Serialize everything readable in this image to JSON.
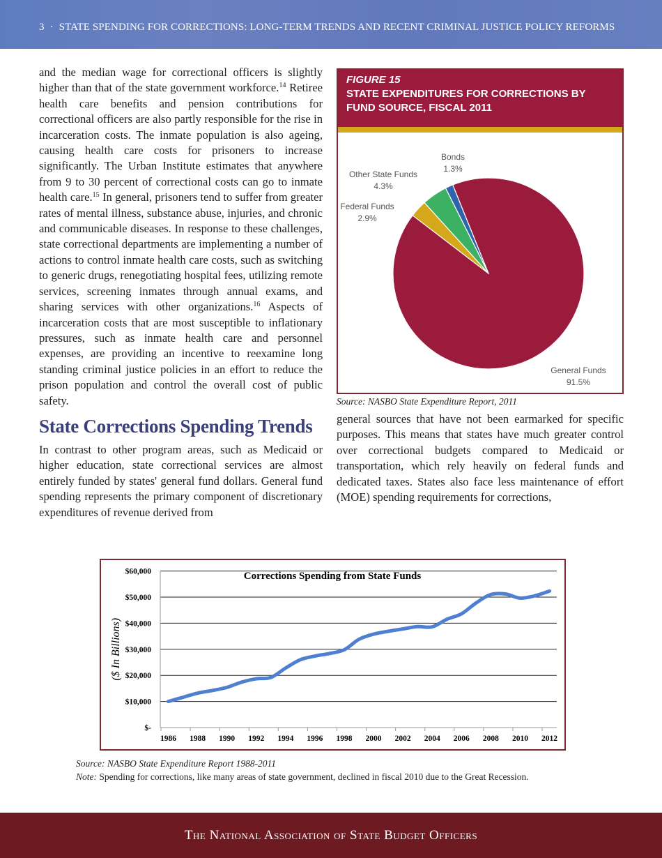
{
  "header": {
    "page_number": "3",
    "separator": "·",
    "title": "STATE SPENDING FOR CORRECTIONS: LONG-TERM TRENDS AND RECENT CRIMINAL JUSTICE POLICY REFORMS"
  },
  "body": {
    "para1_parts": [
      "and the median wage for correctional officers is slightly higher than that of the state government workforce.",
      "14",
      " Retiree health care benefits and pension contributions for correctional officers are also partly responsible for the rise in incarceration costs. The inmate population is also ageing, causing health care costs for prisoners to increase significantly. The Urban Institute estimates that anywhere from 9 to 30 percent of correctional costs can go to inmate health care.",
      "15",
      "  In general, prisoners tend to suffer from greater rates of mental illness, substance abuse, injuries, and  chronic and communicable diseases. In response to these challenges, state correctional departments are implementing a number of actions to control inmate health care costs, such as switching to generic drugs, renegotiating hospital fees, utilizing remote services, screening inmates through annual exams, and sharing services with other organizations.",
      "16",
      " Aspects of incarceration costs that are most susceptible to inflationary pressures, such as inmate health care and personnel expenses, are providing an incentive to reexamine long standing criminal justice policies in an effort to reduce the prison population and control the overall cost of public safety."
    ],
    "heading": "State Corrections Spending Trends",
    "para2": "In contrast to other program areas, such as Medicaid or higher education, state correctional services are almost entirely funded by states' general fund dollars. General fund spending represents the primary component of discretionary expenditures of revenue derived from",
    "para3": "general sources that have not been earmarked for specific purposes. This means that states have much greater control over correctional budgets compared to Medicaid or transportation, which rely heavily on federal funds and dedicated taxes. States also face less maintenance of effort (MOE) spending requirements for corrections,"
  },
  "figure15": {
    "number": "FIGURE 15",
    "title": "STATE EXPENDITURES FOR CORRECTIONS BY FUND SOURCE, FISCAL 2011",
    "source": "Source: NASBO State Expenditure Report, 2011",
    "colors": {
      "band": "#9b1b3d",
      "accent": "#d4a81a"
    }
  },
  "chart_data": [
    {
      "type": "pie",
      "title": "STATE EXPENDITURES FOR CORRECTIONS BY FUND SOURCE, FISCAL 2011",
      "slices": [
        {
          "label": "General Funds",
          "value": 91.5,
          "display": "91.5%",
          "color": "#9b1b3d"
        },
        {
          "label": "Federal Funds",
          "value": 2.9,
          "display": "2.9%",
          "color": "#d4a81a"
        },
        {
          "label": "Other State Funds",
          "value": 4.3,
          "display": "4.3%",
          "color": "#3cb063"
        },
        {
          "label": "Bonds",
          "value": 1.3,
          "display": "1.3%",
          "color": "#2f64ad"
        }
      ]
    },
    {
      "type": "line",
      "title": "Corrections Spending from State Funds",
      "xlabel": "",
      "ylabel": "($ In Billions)",
      "ylim": [
        0,
        60000
      ],
      "grid": true,
      "yticks": [
        "$-",
        "$10,000",
        "$20,000",
        "$30,000",
        "$40,000",
        "$50,000",
        "$60,000"
      ],
      "xticks": [
        "1986",
        "1988",
        "1990",
        "1992",
        "1994",
        "1996",
        "1998",
        "2000",
        "2002",
        "2004",
        "2006",
        "2008",
        "2010",
        "2012"
      ],
      "color": "#4f7fd0",
      "x": [
        1986,
        1987,
        1988,
        1989,
        1990,
        1991,
        1992,
        1993,
        1994,
        1995,
        1996,
        1997,
        1998,
        1999,
        2000,
        2001,
        2002,
        2003,
        2004,
        2005,
        2006,
        2007,
        2008,
        2009,
        2010,
        2011,
        2012
      ],
      "y": [
        10000,
        11600,
        13200,
        14200,
        15400,
        17400,
        18700,
        19200,
        22800,
        26000,
        27400,
        28400,
        29800,
        33800,
        35800,
        36900,
        37800,
        38700,
        38600,
        41500,
        43600,
        47800,
        51000,
        51200,
        49600,
        50500,
        52300
      ]
    }
  ],
  "line_notes": {
    "source": "Source: NASBO State Expenditure Report 1988-2011",
    "note_label": "Note:",
    "note_text": " Spending for corrections, like many areas of state government, declined in fiscal 2010 due to the Great Recession."
  },
  "footer": {
    "text": "The National Association of State Budget Officers"
  }
}
